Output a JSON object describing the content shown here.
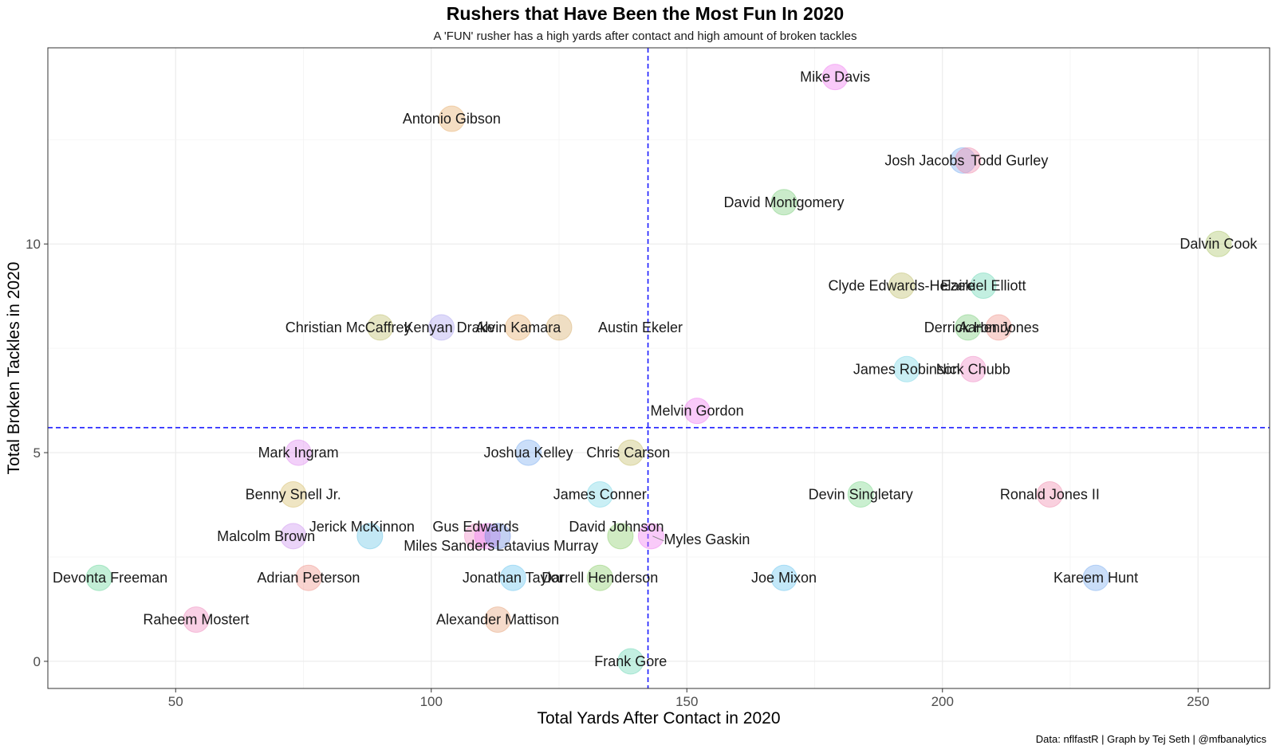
{
  "chart_data": {
    "type": "scatter",
    "title": "Rushers that Have Been the Most Fun In 2020",
    "subtitle": "A 'FUN' rusher has a high yards after contact and high amount of broken tackles",
    "xlabel": "Total Yards After Contact in 2020",
    "ylabel": "Total Broken Tackles in 2020",
    "caption": "Data: nflfastR | Graph by Tej Seth | @mfbanalytics",
    "xlim": [
      25,
      264
    ],
    "ylim": [
      -0.65,
      14.7
    ],
    "x_ticks": [
      50,
      100,
      150,
      200,
      250
    ],
    "y_ticks": [
      0,
      5,
      10
    ],
    "grid": true,
    "reference_lines": {
      "vertical_x": 142.4,
      "horizontal_y": 5.6,
      "color": "#1a1aff",
      "style": "dashed"
    },
    "points": [
      {
        "name": "Mike Davis",
        "x": 179,
        "y": 14,
        "color": "#f080f0"
      },
      {
        "name": "Antonio Gibson",
        "x": 104,
        "y": 13,
        "color": "#e8b070"
      },
      {
        "name": "Josh Jacobs",
        "x": 204,
        "y": 12,
        "color": "#80b0f0"
      },
      {
        "name": "Todd Gurley",
        "x": 205,
        "y": 12,
        "color": "#f090b0"
      },
      {
        "name": "David Montgomery",
        "x": 169,
        "y": 11,
        "color": "#80d080"
      },
      {
        "name": "Dalvin Cook",
        "x": 254,
        "y": 10,
        "color": "#b0c870"
      },
      {
        "name": "Clyde Edwards-Helaire",
        "x": 192,
        "y": 9,
        "color": "#c0c070"
      },
      {
        "name": "Ezekiel Elliott",
        "x": 208,
        "y": 9,
        "color": "#70d8b8"
      },
      {
        "name": "Christian McCaffrey",
        "x": 90,
        "y": 8,
        "color": "#c0c070"
      },
      {
        "name": "Kenyan Drake",
        "x": 102,
        "y": 8,
        "color": "#b0a8f0"
      },
      {
        "name": "Alvin Kamara",
        "x": 117,
        "y": 8,
        "color": "#e8b070"
      },
      {
        "name": "Austin Ekeler",
        "x": 125,
        "y": 8,
        "color": "#d8b070"
      },
      {
        "name": "Derrick Henry",
        "x": 205,
        "y": 8,
        "color": "#80d080"
      },
      {
        "name": "Aaron Jones",
        "x": 211,
        "y": 8,
        "color": "#f09890"
      },
      {
        "name": "James Robinson",
        "x": 193,
        "y": 7,
        "color": "#80d8e8"
      },
      {
        "name": "Nick Chubb",
        "x": 206,
        "y": 7,
        "color": "#f090c8"
      },
      {
        "name": "Melvin Gordon",
        "x": 152,
        "y": 6,
        "color": "#f080f0"
      },
      {
        "name": "Mark Ingram",
        "x": 74,
        "y": 5,
        "color": "#e090f0"
      },
      {
        "name": "Joshua Kelley",
        "x": 119,
        "y": 5,
        "color": "#80b0f0"
      },
      {
        "name": "Chris Carson",
        "x": 139,
        "y": 5,
        "color": "#c8c070"
      },
      {
        "name": "Benny Snell Jr.",
        "x": 73,
        "y": 4,
        "color": "#d8c070"
      },
      {
        "name": "James Conner",
        "x": 133,
        "y": 4,
        "color": "#80d8e8"
      },
      {
        "name": "Devin Singletary",
        "x": 184,
        "y": 4,
        "color": "#80d890"
      },
      {
        "name": "Ronald Jones II",
        "x": 221,
        "y": 4,
        "color": "#f090b0"
      },
      {
        "name": "Malcolm Brown",
        "x": 73,
        "y": 3,
        "color": "#d098f0"
      },
      {
        "name": "Jerick McKinnon",
        "x": 88,
        "y": 3,
        "color": "#70c8e8"
      },
      {
        "name": "Gus Edwards",
        "x": 109,
        "y": 3,
        "color": "#f090c8"
      },
      {
        "name": "Miles Sanders",
        "x": 111,
        "y": 3,
        "color": "#f080f0"
      },
      {
        "name": "Latavius Murray",
        "x": 113,
        "y": 3,
        "color": "#7090e0"
      },
      {
        "name": "David Johnson",
        "x": 137,
        "y": 3,
        "color": "#90d070"
      },
      {
        "name": "Myles Gaskin",
        "x": 143,
        "y": 3,
        "color": "#f080f0"
      },
      {
        "name": "Devonta Freeman",
        "x": 35,
        "y": 2,
        "color": "#70d8a0"
      },
      {
        "name": "Adrian Peterson",
        "x": 76,
        "y": 2,
        "color": "#f09890"
      },
      {
        "name": "Jonathan Taylor",
        "x": 116,
        "y": 2,
        "color": "#70c8f0"
      },
      {
        "name": "Darrell Henderson",
        "x": 133,
        "y": 2,
        "color": "#90d070"
      },
      {
        "name": "Joe Mixon",
        "x": 169,
        "y": 2,
        "color": "#70c8f0"
      },
      {
        "name": "Kareem Hunt",
        "x": 230,
        "y": 2,
        "color": "#80b0f0"
      },
      {
        "name": "Raheem Mostert",
        "x": 54,
        "y": 1,
        "color": "#f090c0"
      },
      {
        "name": "Alexander Mattison",
        "x": 113,
        "y": 1,
        "color": "#e8a880"
      },
      {
        "name": "Frank Gore",
        "x": 139,
        "y": 0,
        "color": "#70d8b8"
      }
    ]
  }
}
